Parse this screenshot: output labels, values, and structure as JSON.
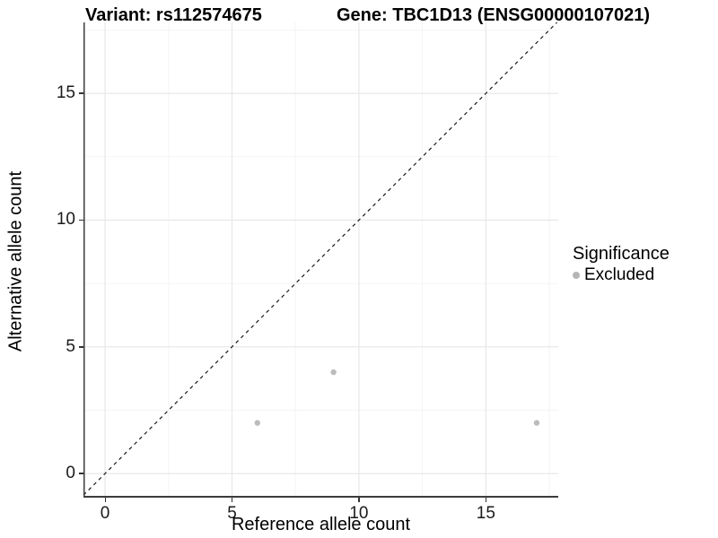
{
  "header": {
    "title_left": "Variant: rs112574675",
    "title_right": "Gene: TBC1D13 (ENSG00000107021)"
  },
  "chart_data": {
    "type": "scatter",
    "xlabel": "Reference allele count",
    "ylabel": "Alternative allele count",
    "x_ticks": [
      0,
      5,
      10,
      15
    ],
    "y_ticks": [
      0,
      5,
      10,
      15
    ],
    "x_minor_ticks": [
      2.5,
      7.5,
      12.5,
      17.5
    ],
    "y_minor_ticks": [
      2.5,
      7.5,
      12.5,
      17.5
    ],
    "xlim": [
      -0.85,
      17.85
    ],
    "ylim": [
      -0.95,
      17.8
    ],
    "grid": "major+minor",
    "series": [
      {
        "name": "Excluded",
        "color": "#bcbcbc",
        "points": [
          {
            "x": 6,
            "y": 2
          },
          {
            "x": 9,
            "y": 4
          },
          {
            "x": 17,
            "y": 2
          }
        ]
      }
    ],
    "reference_line": {
      "kind": "identity",
      "style": "dashed",
      "color": "#1a1a1a"
    },
    "legend": {
      "title": "Significance",
      "position": "right",
      "items": [
        {
          "label": "Excluded",
          "color": "#b5b5b5"
        }
      ]
    }
  },
  "colors": {
    "grid_major": "#e6e6e6",
    "grid_minor": "#f3f3f3",
    "axis_line": "#3c3c3c",
    "background": "#ffffff"
  }
}
